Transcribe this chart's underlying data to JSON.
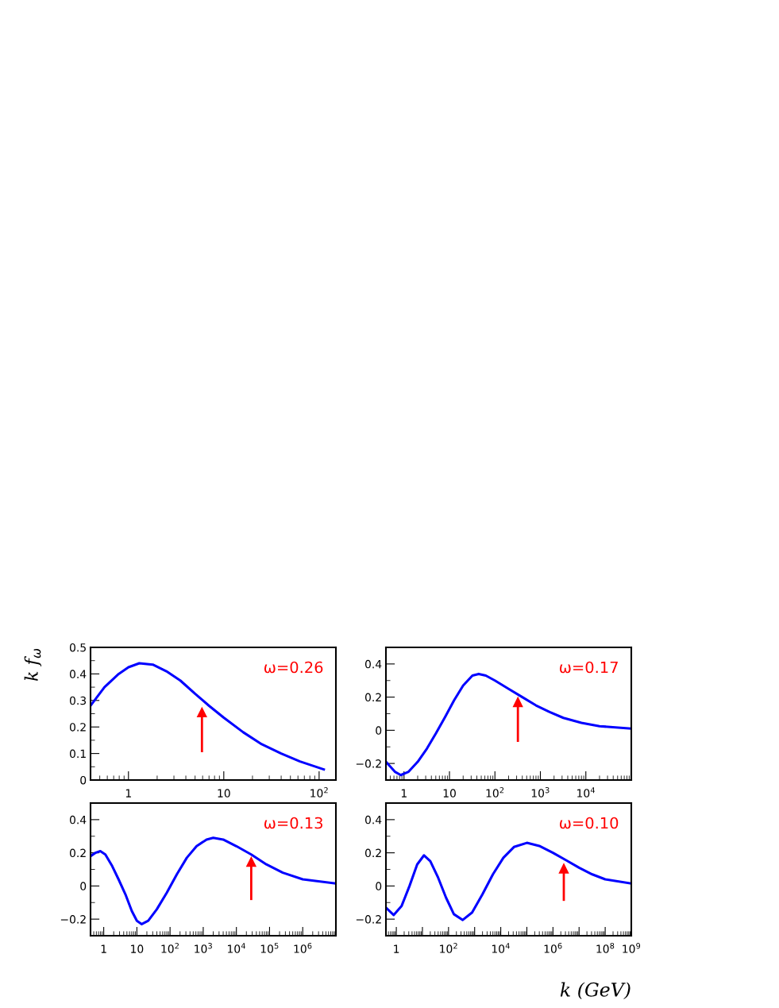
{
  "chart_data": [
    {
      "type": "line",
      "ylabel": "k f$_{ω}$",
      "log": "x",
      "xlim": [
        0.4,
        150
      ],
      "ylim": [
        0,
        0.5
      ],
      "xticks": [
        1,
        10,
        {
          "value": 100,
          "label": "10$^{2}$"
        }
      ],
      "yticks": [
        0,
        0.1,
        0.2,
        0.3,
        0.4,
        0.5
      ],
      "annotations": [
        "ω=0.26"
      ],
      "series": [
        {
          "type": "line",
          "marker": "triangle",
          "color": "#ff0000",
          "x": [
            5.9,
            5.9
          ],
          "values": [
            0.105,
            0.255
          ]
        },
        {
          "color": "#0000ff",
          "x": [
            0.4,
            0.56,
            0.79,
            1,
            1.3,
            1.8,
            2.5,
            3.5,
            5,
            7,
            10,
            16,
            25,
            40,
            63,
            112
          ],
          "values": [
            0.28,
            0.35,
            0.4,
            0.425,
            0.44,
            0.435,
            0.41,
            0.375,
            0.325,
            0.28,
            0.235,
            0.18,
            0.135,
            0.1,
            0.07,
            0.04
          ]
        }
      ]
    },
    {
      "type": "line",
      "log": "x",
      "xlim": [
        0.4,
        100000
      ],
      "ylim": [
        -0.3,
        0.5
      ],
      "xticks": [
        1,
        10,
        {
          "value": 100,
          "label": "10$^{2}$"
        },
        {
          "value": 1000,
          "label": "10$^{3}$"
        },
        {
          "value": 10000,
          "label": "10$^{4}$"
        }
      ],
      "yticks": [
        -0.2,
        0,
        0.2,
        0.4
      ],
      "annotations": [
        "ω=0.17"
      ],
      "series": [
        {
          "type": "line",
          "marker": "triangle",
          "color": "#ff0000",
          "x": [
            320,
            320
          ],
          "values": [
            -0.07,
            0.17
          ]
        },
        {
          "color": "#0000ff",
          "x": [
            0.4,
            0.63,
            0.85,
            1.26,
            2,
            3.2,
            5,
            8,
            12.6,
            20,
            32,
            44,
            63,
            100,
            200,
            400,
            800,
            1600,
            3200,
            8000,
            20000,
            100000
          ],
          "values": [
            -0.19,
            -0.25,
            -0.27,
            -0.25,
            -0.19,
            -0.11,
            -0.02,
            0.08,
            0.18,
            0.27,
            0.33,
            0.34,
            0.33,
            0.3,
            0.25,
            0.2,
            0.15,
            0.11,
            0.075,
            0.045,
            0.025,
            0.01
          ]
        }
      ]
    },
    {
      "type": "line",
      "log": "x",
      "xlim": [
        0.4,
        10000000
      ],
      "ylim": [
        -0.3,
        0.5
      ],
      "xticks": [
        1,
        10,
        {
          "value": 100,
          "label": "10$^{2}$"
        },
        {
          "value": 1000,
          "label": "10$^{3}$"
        },
        {
          "value": 10000,
          "label": "10$^{4}$"
        },
        {
          "value": 100000,
          "label": "10$^{5}$"
        },
        {
          "value": 1000000,
          "label": "10$^{6}$"
        }
      ],
      "yticks": [
        -0.2,
        0,
        0.2,
        0.4
      ],
      "annotations": [
        "ω=0.13"
      ],
      "series": [
        {
          "type": "line",
          "marker": "triangle",
          "color": "#ff0000",
          "x": [
            28000,
            28000
          ],
          "values": [
            -0.085,
            0.145
          ]
        },
        {
          "color": "#0000ff",
          "x": [
            0.4,
            0.56,
            0.79,
            1.12,
            1.8,
            2.8,
            4.5,
            7,
            10,
            14,
            22,
            40,
            80,
            160,
            320,
            630,
            1260,
            2000,
            4000,
            10000,
            28000,
            80000,
            250000,
            1000000,
            10000000
          ],
          "values": [
            0.18,
            0.2,
            0.21,
            0.19,
            0.12,
            0.04,
            -0.05,
            -0.15,
            -0.21,
            -0.23,
            -0.21,
            -0.14,
            -0.04,
            0.07,
            0.17,
            0.24,
            0.28,
            0.29,
            0.28,
            0.24,
            0.19,
            0.13,
            0.08,
            0.04,
            0.015
          ]
        }
      ]
    },
    {
      "type": "line",
      "log": "x",
      "xlabel": "k (GeV)",
      "xlim": [
        0.4,
        1000000000
      ],
      "ylim": [
        -0.3,
        0.5
      ],
      "xticks": [
        1,
        {
          "value": 10,
          "label": null
        },
        {
          "value": 100,
          "label": "10$^{2}$"
        },
        {
          "value": 1000,
          "label": null
        },
        {
          "value": 10000,
          "label": "10$^{4}$"
        },
        {
          "value": 100000,
          "label": null
        },
        {
          "value": 1000000,
          "label": "10$^{6}$"
        },
        {
          "value": 10000000,
          "label": null
        },
        {
          "value": 100000000,
          "label": "10$^{8}$"
        },
        {
          "value": 1000000000,
          "label": "10$^{9}$"
        }
      ],
      "yticks": [
        -0.2,
        0,
        0.2,
        0.4
      ],
      "annotations": [
        "ω=0.10"
      ],
      "series": [
        {
          "type": "line",
          "marker": "triangle",
          "color": "#ff0000",
          "x": [
            2600000,
            2600000
          ],
          "values": [
            -0.09,
            0.105
          ]
        },
        {
          "color": "#0000ff",
          "x": [
            0.4,
            0.79,
            1.6,
            3.2,
            6.3,
            11.5,
            20,
            40,
            80,
            160,
            350,
            800,
            2000,
            5000,
            12600,
            32000,
            100000,
            320000,
            1000000,
            3200000,
            10000000,
            32000000,
            100000000,
            1000000000
          ],
          "values": [
            -0.13,
            -0.175,
            -0.12,
            0.0,
            0.13,
            0.185,
            0.15,
            0.05,
            -0.07,
            -0.17,
            -0.205,
            -0.16,
            -0.05,
            0.07,
            0.17,
            0.235,
            0.26,
            0.24,
            0.2,
            0.155,
            0.11,
            0.07,
            0.04,
            0.015
          ]
        }
      ]
    }
  ]
}
